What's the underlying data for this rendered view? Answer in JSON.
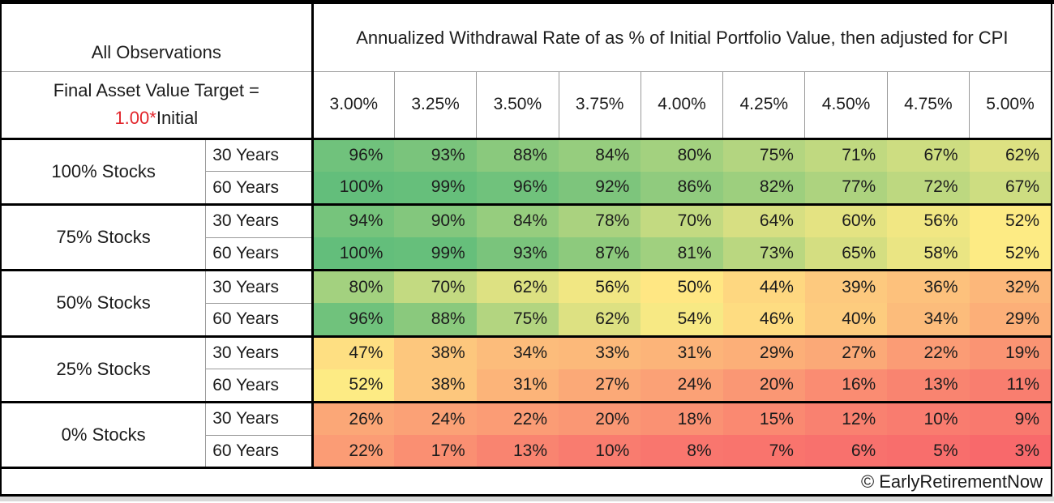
{
  "table": {
    "corner_title": "All Observations",
    "target_label_line1": "Final Asset Value Target =",
    "target_value_red": "1.00*",
    "target_value_suffix": "Initial",
    "footer_credit": "© EarlyRetirementNow"
  },
  "colors": {
    "accent_red": "#e2262c",
    "thin_grid": "#9a9a9a",
    "thick_grid": "#000000",
    "text": "#1c1c1c"
  },
  "chart_data": {
    "type": "heatmap",
    "title": "Annualized Withdrawal Rate of as % of Initial Portfolio Value, then adjusted for CPI",
    "columns": [
      "3.00%",
      "3.25%",
      "3.50%",
      "3.75%",
      "4.00%",
      "4.25%",
      "4.50%",
      "4.75%",
      "5.00%"
    ],
    "row_groups": [
      {
        "label": "100% Stocks",
        "rows": [
          {
            "label": "30 Years",
            "values": [
              96,
              93,
              88,
              84,
              80,
              75,
              71,
              67,
              62
            ]
          },
          {
            "label": "60 Years",
            "values": [
              100,
              99,
              96,
              92,
              86,
              82,
              77,
              72,
              67
            ]
          }
        ]
      },
      {
        "label": "75% Stocks",
        "rows": [
          {
            "label": "30 Years",
            "values": [
              94,
              90,
              84,
              78,
              70,
              64,
              60,
              56,
              52
            ]
          },
          {
            "label": "60 Years",
            "values": [
              100,
              99,
              93,
              87,
              81,
              73,
              65,
              58,
              52
            ]
          }
        ]
      },
      {
        "label": "50% Stocks",
        "rows": [
          {
            "label": "30 Years",
            "values": [
              80,
              70,
              62,
              56,
              50,
              44,
              39,
              36,
              32
            ]
          },
          {
            "label": "60 Years",
            "values": [
              96,
              88,
              75,
              62,
              54,
              46,
              40,
              34,
              29
            ]
          }
        ]
      },
      {
        "label": "25% Stocks",
        "rows": [
          {
            "label": "30 Years",
            "values": [
              47,
              38,
              34,
              33,
              31,
              29,
              27,
              22,
              19
            ]
          },
          {
            "label": "60 Years",
            "values": [
              52,
              38,
              31,
              27,
              24,
              20,
              16,
              13,
              11
            ]
          }
        ]
      },
      {
        "label": "0% Stocks",
        "rows": [
          {
            "label": "30 Years",
            "values": [
              26,
              24,
              22,
              20,
              18,
              15,
              12,
              10,
              9
            ]
          },
          {
            "label": "60 Years",
            "values": [
              22,
              17,
              13,
              10,
              8,
              7,
              6,
              5,
              3
            ]
          }
        ]
      }
    ],
    "value_suffix": "%",
    "color_scale": {
      "min_value": 3,
      "mid_value": 51.5,
      "max_value": 100,
      "min_color": "#F8696B",
      "mid_color": "#FFEB84",
      "max_color": "#63BE7B"
    },
    "legend_position": "none",
    "grid": false
  }
}
